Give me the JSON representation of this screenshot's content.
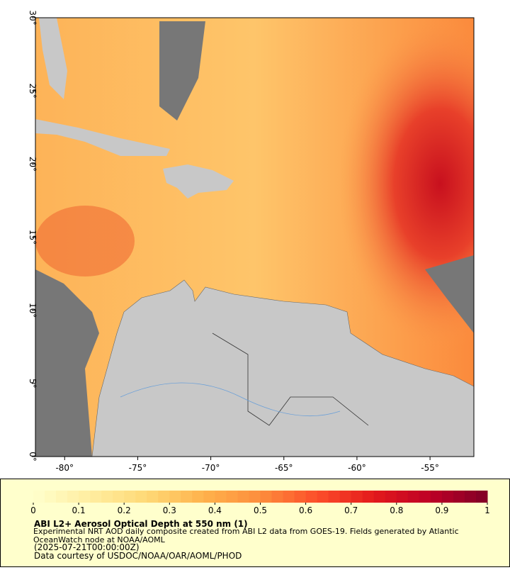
{
  "chart_data": {
    "type": "map",
    "xlim": [
      -82,
      -52
    ],
    "ylim": [
      0,
      30
    ],
    "xticks": [
      {
        "value": -80,
        "label": "-80°"
      },
      {
        "value": -75,
        "label": "-75°"
      },
      {
        "value": -70,
        "label": "-70°"
      },
      {
        "value": -65,
        "label": "-65°"
      },
      {
        "value": -60,
        "label": "-60°"
      },
      {
        "value": -55,
        "label": "-55°"
      }
    ],
    "yticks": [
      {
        "value": 0,
        "label": "0°"
      },
      {
        "value": 5,
        "label": "5°"
      },
      {
        "value": 10,
        "label": "10°"
      },
      {
        "value": 15,
        "label": "15°"
      },
      {
        "value": 20,
        "label": "20°"
      },
      {
        "value": 25,
        "label": "25°"
      },
      {
        "value": 30,
        "label": "30°"
      }
    ],
    "colorbar": {
      "lim": [
        0,
        1
      ],
      "ticks": [
        0,
        0.1,
        0.2,
        0.3,
        0.4,
        0.5,
        0.6,
        0.7,
        0.8,
        0.9,
        1
      ],
      "colors": [
        "#ffffcc",
        "#ffeda0",
        "#fed976",
        "#feb24c",
        "#fd8d3c",
        "#fc4e2a",
        "#e31a1c",
        "#bd0026",
        "#800026"
      ]
    },
    "title": "ABI L2+ Aerosol Optical Depth at 550 nm (1)",
    "description": "Experimental NRT AOD daily composite created from ABI L2 data from GOES-19. Fields generated by Atlantic OceanWatch node at NOAA/AOML",
    "timestamp": "(2025-07-21T00:00:00Z)",
    "credit": "Data courtesy of USDOC/NOAA/OAR/AOML/PHOD"
  }
}
